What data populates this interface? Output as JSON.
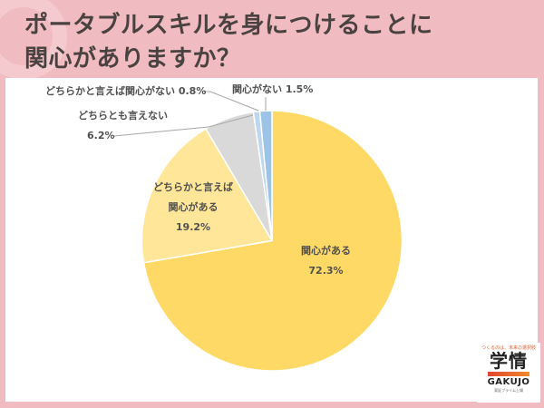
{
  "header": {
    "title_line1": "ポータブルスキルを身につけることに",
    "title_line2": "関心がありますか？"
  },
  "chart_data": {
    "type": "pie",
    "title": "ポータブルスキルを身につけることに関心がありますか？",
    "start_angle": "12 o'clock, clockwise",
    "slices": [
      {
        "label": "関心がある",
        "value": 72.3,
        "color": "#ffd966"
      },
      {
        "label": "どちらかと言えば関心がある",
        "value": 19.2,
        "color": "#ffe699"
      },
      {
        "label": "どちらとも言えない",
        "value": 6.2,
        "color": "#d9d9d9"
      },
      {
        "label": "どちらかと言えば関心がない",
        "value": 0.8,
        "color": "#bdd7ee"
      },
      {
        "label": "関心がない",
        "value": 1.5,
        "color": "#9dc3e6"
      }
    ]
  },
  "labels": {
    "interested": {
      "line1": "関心がある",
      "pct": "72.3%"
    },
    "somewhat_interested": {
      "line1": "どちらかと言えば",
      "line2": "関心がある",
      "pct": "19.2%"
    },
    "neutral": {
      "line1": "どちらとも言えない",
      "pct": "6.2%"
    },
    "somewhat_not": {
      "text": "どちらかと言えば関心がない 0.8%"
    },
    "not_interested": {
      "text": "関心がない 1.5%"
    }
  },
  "logo": {
    "tagline": "つくるのは、未来の選択肢",
    "kanji": "学情",
    "english": "GAKUJO",
    "subtitle": "東証プライム上場"
  }
}
